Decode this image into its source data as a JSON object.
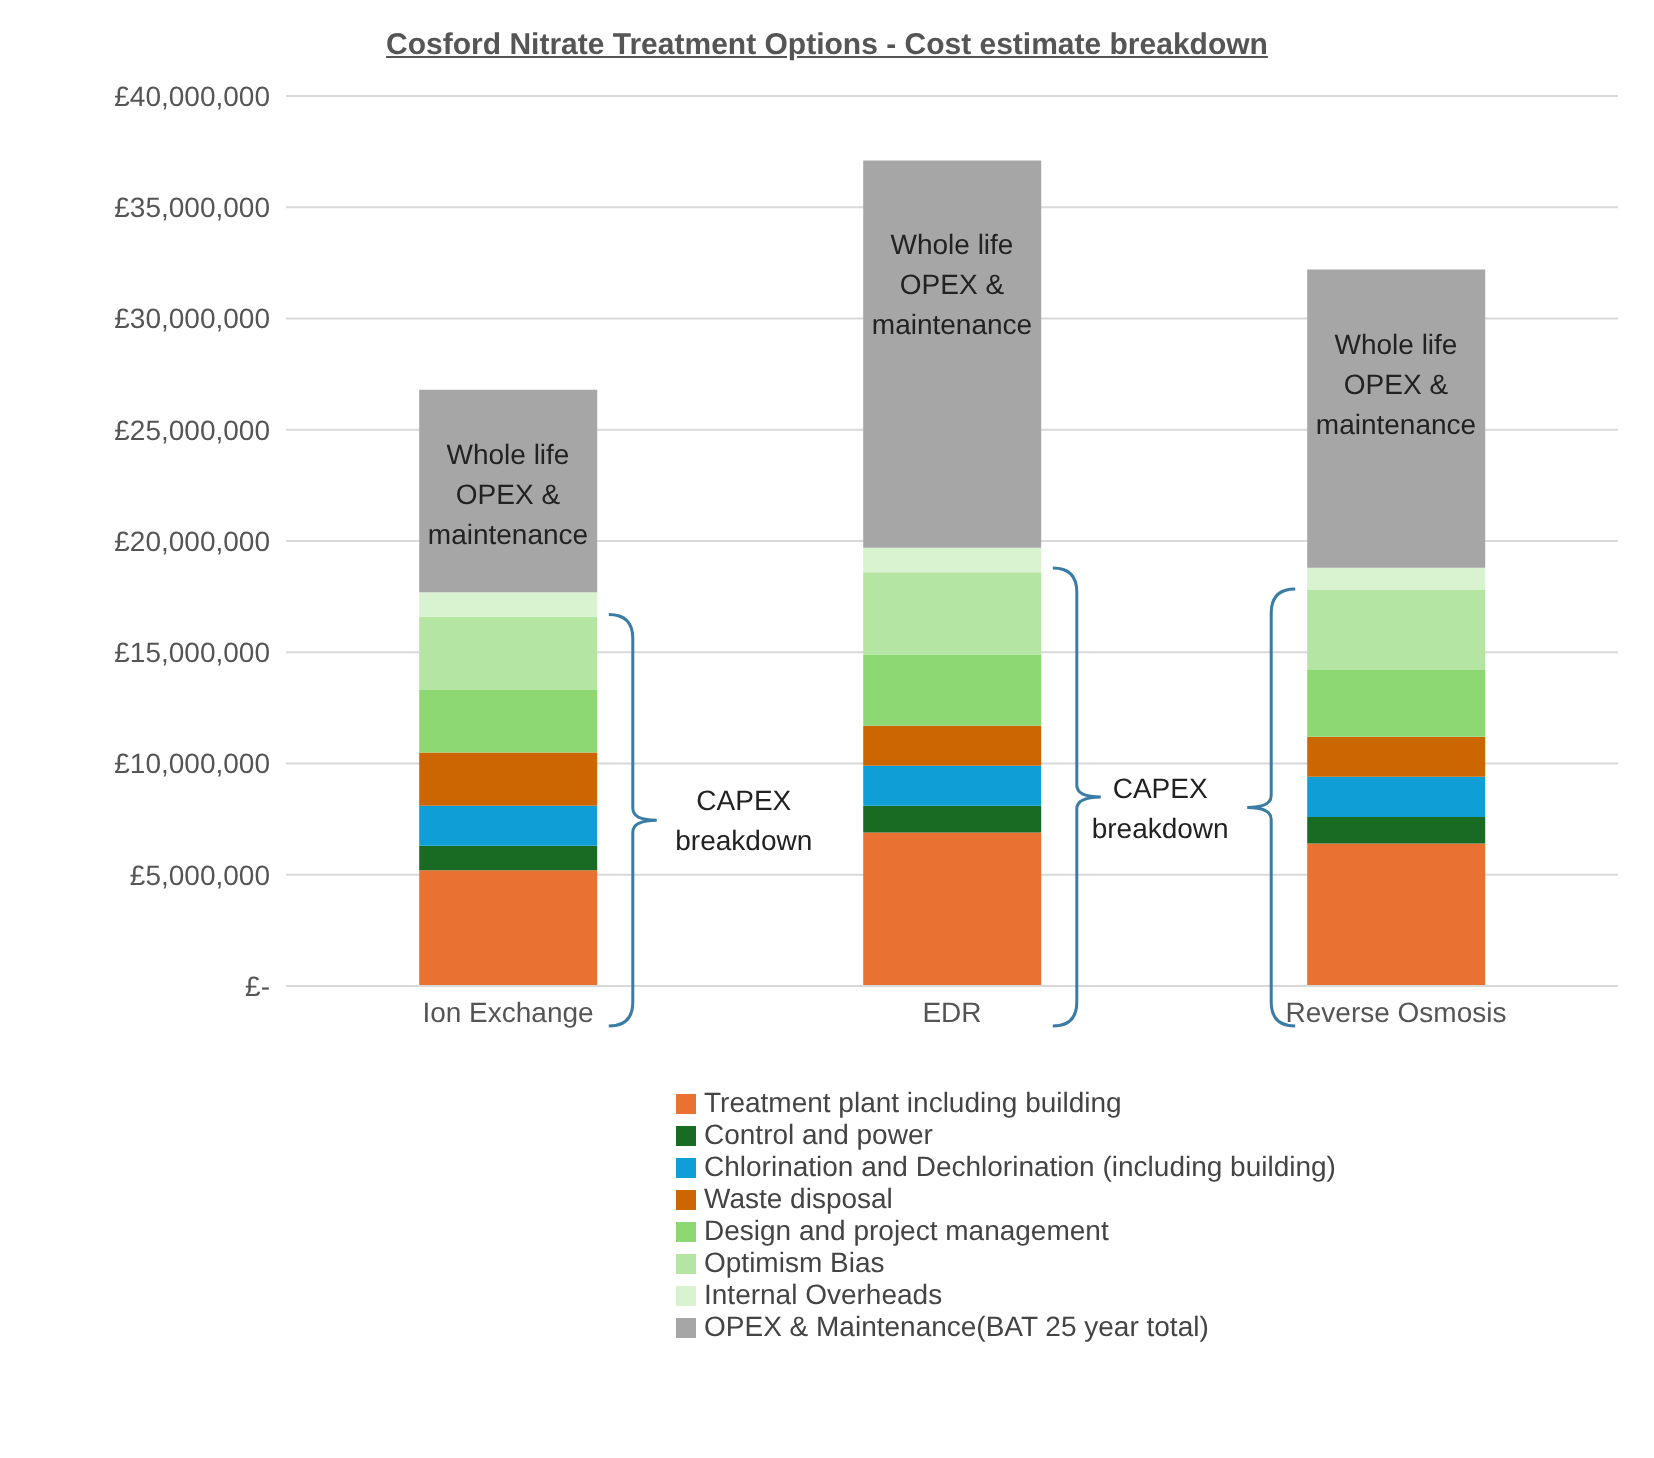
{
  "chart_data": {
    "type": "bar",
    "title": "Cosford Nitrate Treatment Options - Cost estimate breakdown",
    "stacked": true,
    "categories": [
      "Ion Exchange",
      "EDR",
      "Reverse Osmosis"
    ],
    "series": [
      {
        "name": "Treatment plant including building",
        "color": "#e97132",
        "values": [
          5200000,
          6900000,
          6400000
        ]
      },
      {
        "name": "Control and power",
        "color": "#196b24",
        "values": [
          1100000,
          1200000,
          1200000
        ]
      },
      {
        "name": "Chlorination and Dechlorination (including building)",
        "color": "#0f9ed5",
        "values": [
          1800000,
          1800000,
          1800000
        ]
      },
      {
        "name": "Waste disposal",
        "color": "#cc6600",
        "values": [
          2400000,
          1800000,
          1800000
        ]
      },
      {
        "name": "Design and project management",
        "color": "#8ed873",
        "values": [
          2800000,
          3200000,
          3000000
        ]
      },
      {
        "name": "Optimism Bias",
        "color": "#b4e5a2",
        "values": [
          3300000,
          3700000,
          3600000
        ]
      },
      {
        "name": "Internal Overheads",
        "color": "#d9f2d0",
        "values": [
          1100000,
          1100000,
          1000000
        ]
      },
      {
        "name": "OPEX & Maintenance(BAT 25 year total)",
        "color": "#a6a6a6",
        "values": [
          9100000,
          17400000,
          13400000
        ]
      }
    ],
    "ylim": [
      0,
      40000000
    ],
    "yticks": [
      {
        "value": 0,
        "label": "£-"
      },
      {
        "value": 5000000,
        "label": "£5,000,000"
      },
      {
        "value": 10000000,
        "label": "£10,000,000"
      },
      {
        "value": 15000000,
        "label": "£15,000,000"
      },
      {
        "value": 20000000,
        "label": "£20,000,000"
      },
      {
        "value": 25000000,
        "label": "£25,000,000"
      },
      {
        "value": 30000000,
        "label": "£30,000,000"
      },
      {
        "value": 35000000,
        "label": "£35,000,000"
      },
      {
        "value": 40000000,
        "label": "£40,000,000"
      }
    ],
    "grid": "y",
    "legend": "bottom",
    "annotations": [
      "Whole life OPEX & maintenance",
      "Whole life OPEX & maintenance",
      "Whole life OPEX & maintenance",
      "CAPEX breakdown",
      "CAPEX breakdown"
    ]
  }
}
